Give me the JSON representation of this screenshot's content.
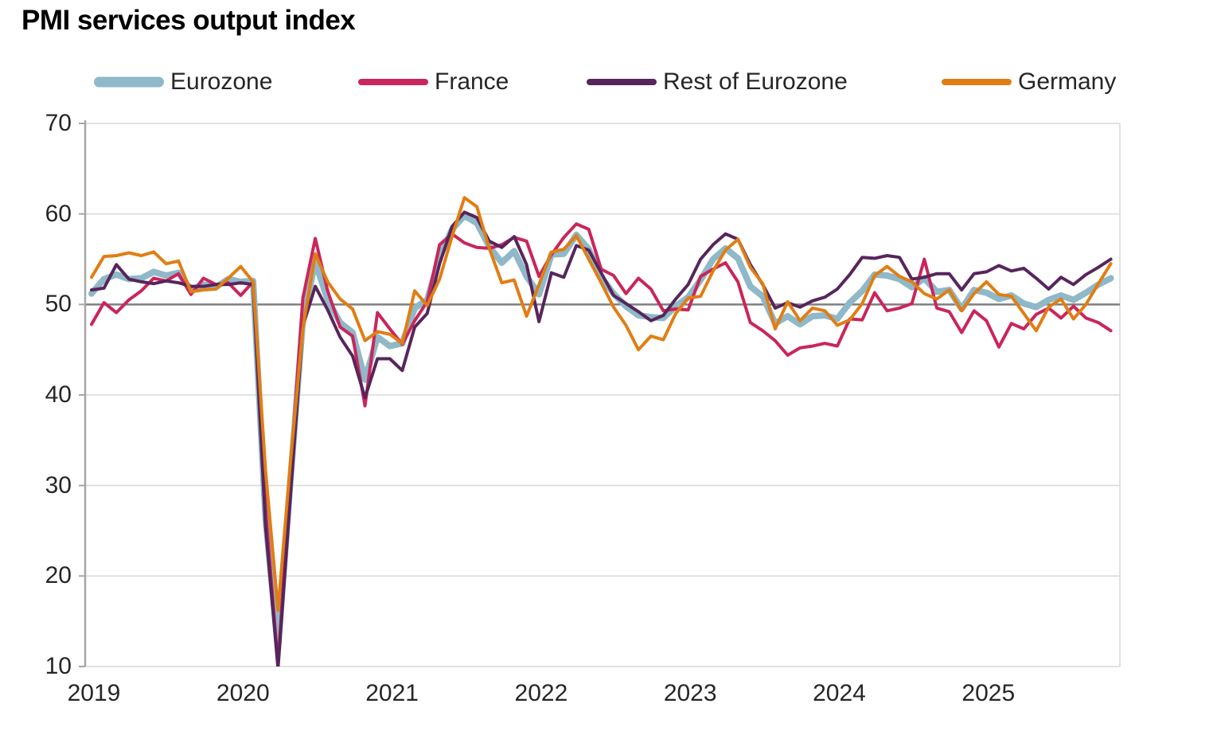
{
  "title": "PMI services output index",
  "legend": [
    {
      "id": "eurozone",
      "label": "Eurozone",
      "color": "#8FB8C8",
      "thick": true
    },
    {
      "id": "france",
      "label": "France",
      "color": "#C9265B",
      "thick": false
    },
    {
      "id": "rest-of-eurozone",
      "label": "Rest of Eurozone",
      "color": "#57255C",
      "thick": false
    },
    {
      "id": "germany",
      "label": "Germany",
      "color": "#E07E14",
      "thick": false
    }
  ],
  "colors": {
    "gridline": "#D9D9D9",
    "reference_line": "#7F7F7F",
    "axis_line": "#A6A6A6",
    "tick_text": "#262626",
    "title_text": "#000000"
  },
  "chart_data": {
    "type": "line",
    "title": "PMI services output index",
    "frequency": "monthly",
    "x_start": "2019-01",
    "x_end": "2025-11",
    "x_year_labels": [
      "2019",
      "2020",
      "2021",
      "2022",
      "2023",
      "2024",
      "2025"
    ],
    "ylim": [
      10,
      70
    ],
    "y_ticks": [
      70,
      60,
      50,
      40,
      30,
      20,
      10
    ],
    "reference_line": 50,
    "grid": "horizontal",
    "legend_position": "top",
    "series": [
      {
        "name": "Eurozone",
        "color": "#8FB8C8",
        "line_width": 8,
        "values": [
          51.2,
          52.8,
          53.3,
          52.8,
          52.9,
          53.6,
          53.2,
          53.5,
          51.6,
          52.2,
          51.9,
          52.8,
          52.5,
          52.6,
          26.4,
          12.0,
          30.5,
          48.3,
          54.7,
          50.5,
          48.0,
          46.9,
          41.7,
          46.4,
          45.4,
          45.7,
          49.6,
          50.5,
          55.2,
          58.3,
          59.8,
          59.0,
          56.4,
          54.6,
          55.9,
          53.1,
          51.1,
          55.5,
          55.6,
          57.7,
          56.1,
          53.0,
          51.2,
          49.8,
          48.8,
          48.6,
          48.5,
          49.8,
          50.8,
          52.7,
          55.0,
          56.2,
          55.1,
          52.0,
          50.9,
          47.9,
          48.7,
          47.8,
          48.7,
          48.8,
          48.4,
          50.2,
          51.5,
          53.3,
          53.2,
          52.8,
          51.9,
          52.9,
          51.4,
          51.6,
          49.5,
          51.6,
          51.3,
          50.6,
          51.0,
          50.1,
          49.7,
          50.5,
          51.0,
          50.5,
          51.3,
          52.2,
          52.9
        ]
      },
      {
        "name": "France",
        "color": "#C9265B",
        "line_width": 4,
        "values": [
          47.8,
          50.2,
          49.1,
          50.5,
          51.5,
          52.9,
          52.6,
          53.4,
          51.1,
          52.9,
          52.2,
          52.4,
          51.0,
          52.5,
          27.4,
          10.2,
          31.1,
          50.7,
          57.3,
          51.5,
          47.5,
          46.5,
          38.8,
          49.1,
          47.3,
          45.6,
          48.2,
          50.3,
          56.6,
          57.8,
          56.8,
          56.3,
          56.2,
          56.6,
          57.4,
          57.0,
          53.1,
          55.5,
          57.4,
          58.9,
          58.3,
          53.9,
          53.2,
          51.2,
          52.9,
          51.7,
          49.3,
          49.5,
          49.4,
          53.1,
          53.9,
          54.6,
          52.5,
          48.0,
          47.1,
          46.0,
          44.4,
          45.2,
          45.4,
          45.7,
          45.4,
          48.4,
          48.3,
          51.3,
          49.3,
          49.6,
          50.1,
          55.0,
          49.6,
          49.2,
          46.9,
          49.3,
          48.2,
          45.3,
          47.9,
          47.3,
          48.9,
          49.6,
          48.5,
          49.8,
          48.5,
          48.0,
          47.1
        ]
      },
      {
        "name": "Rest of Eurozone",
        "color": "#57255C",
        "line_width": 4,
        "values": [
          51.6,
          51.8,
          54.4,
          52.8,
          52.5,
          52.3,
          52.6,
          52.4,
          52.0,
          52.0,
          52.2,
          52.2,
          52.4,
          52.2,
          25.5,
          9.8,
          28.9,
          47.6,
          52.0,
          49.4,
          46.4,
          44.3,
          39.7,
          44.0,
          44.0,
          42.7,
          47.5,
          49.0,
          54.5,
          58.6,
          60.2,
          59.6,
          57.0,
          56.3,
          57.5,
          54.4,
          48.1,
          53.5,
          53.0,
          56.5,
          56.0,
          53.5,
          51.0,
          50.1,
          49.2,
          48.2,
          48.8,
          50.6,
          52.2,
          55.0,
          56.6,
          57.8,
          57.2,
          54.4,
          52.2,
          49.6,
          50.2,
          49.7,
          50.4,
          50.8,
          51.7,
          53.3,
          55.2,
          55.1,
          55.4,
          55.2,
          52.8,
          53.0,
          53.4,
          53.4,
          51.6,
          53.4,
          53.6,
          54.3,
          53.7,
          54.0,
          52.9,
          51.7,
          53.0,
          52.2,
          53.3,
          54.1,
          55.0
        ]
      },
      {
        "name": "Germany",
        "color": "#E07E14",
        "line_width": 4,
        "values": [
          53.0,
          55.3,
          55.4,
          55.7,
          55.4,
          55.8,
          54.5,
          54.8,
          51.4,
          51.6,
          51.7,
          52.9,
          54.2,
          52.5,
          31.7,
          16.2,
          32.6,
          47.3,
          55.6,
          52.5,
          50.6,
          49.5,
          46.0,
          47.0,
          46.7,
          45.7,
          51.5,
          49.9,
          52.8,
          57.5,
          61.8,
          60.8,
          56.2,
          52.4,
          52.7,
          48.7,
          52.2,
          55.8,
          56.1,
          57.6,
          55.0,
          52.4,
          49.7,
          47.7,
          45.0,
          46.5,
          46.1,
          49.0,
          50.7,
          50.9,
          53.7,
          56.0,
          57.2,
          54.1,
          52.3,
          47.3,
          50.3,
          48.2,
          49.6,
          49.3,
          47.7,
          48.3,
          50.1,
          53.2,
          54.2,
          53.1,
          52.5,
          51.2,
          50.6,
          51.6,
          49.3,
          51.2,
          52.5,
          51.1,
          50.9,
          49.0,
          47.1,
          49.7,
          50.6,
          48.4,
          50.0,
          52.3,
          54.5
        ]
      }
    ]
  }
}
